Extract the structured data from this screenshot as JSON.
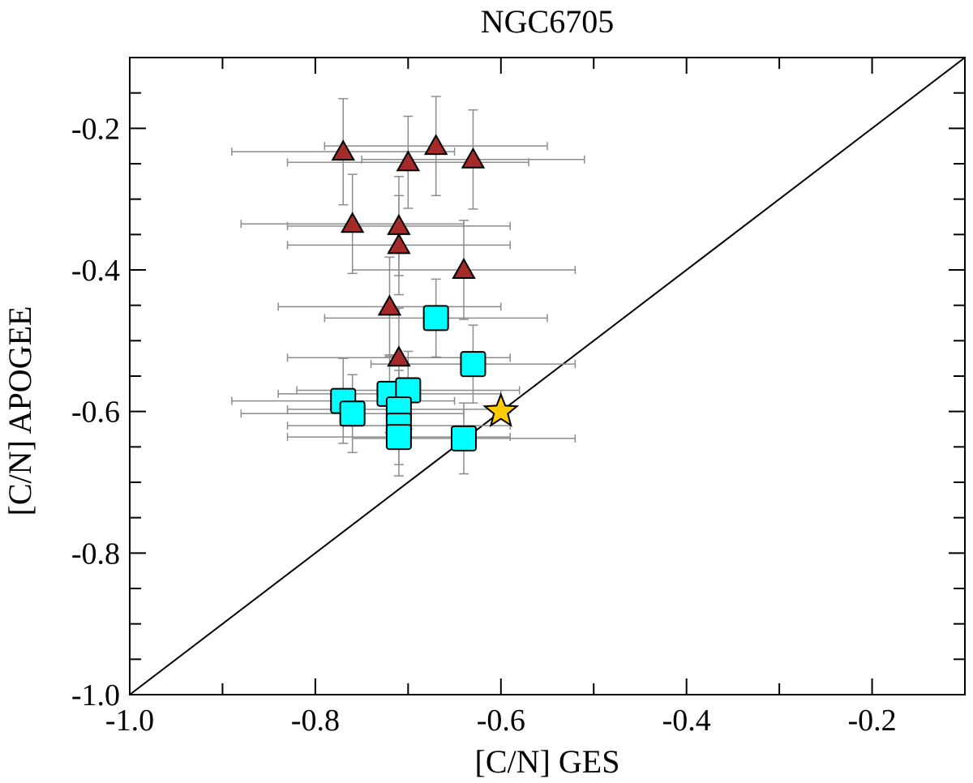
{
  "chart_data": {
    "type": "scatter",
    "title": "NGC6705",
    "xlabel": "[C/N] GES",
    "ylabel": "[C/N] APOGEE",
    "xlim": [
      -1.0,
      -0.1
    ],
    "ylim": [
      -1.0,
      -0.1
    ],
    "x_ticks": [
      -1.0,
      -0.8,
      -0.6,
      -0.4,
      -0.2
    ],
    "x_tick_labels": [
      "-1.0",
      "-0.8",
      "-0.6",
      "-0.4",
      "-0.2"
    ],
    "y_ticks": [
      -1.0,
      -0.8,
      -0.6,
      -0.4,
      -0.2
    ],
    "y_tick_labels": [
      "-1.0",
      "-0.8",
      "-0.6",
      "-0.4",
      "-0.2"
    ],
    "grid": false,
    "reference_line": {
      "name": "one-to-one",
      "from": [
        -1.0,
        -1.0
      ],
      "to": [
        -0.1,
        -0.1
      ]
    },
    "series": [
      {
        "name": "triangles",
        "marker": "triangle",
        "color": "#a52a2a",
        "points": [
          {
            "x": -0.77,
            "y": -0.233,
            "xerr": 0.12,
            "yerr": 0.075
          },
          {
            "x": -0.67,
            "y": -0.225,
            "xerr": 0.12,
            "yerr": 0.07
          },
          {
            "x": -0.7,
            "y": -0.248,
            "xerr": 0.13,
            "yerr": 0.065
          },
          {
            "x": -0.63,
            "y": -0.244,
            "xerr": 0.12,
            "yerr": 0.07
          },
          {
            "x": -0.76,
            "y": -0.335,
            "xerr": 0.12,
            "yerr": 0.07
          },
          {
            "x": -0.71,
            "y": -0.338,
            "xerr": 0.12,
            "yerr": 0.07
          },
          {
            "x": -0.71,
            "y": -0.365,
            "xerr": 0.12,
            "yerr": 0.07
          },
          {
            "x": -0.64,
            "y": -0.4,
            "xerr": 0.12,
            "yerr": 0.07
          },
          {
            "x": -0.72,
            "y": -0.452,
            "xerr": 0.12,
            "yerr": 0.07
          },
          {
            "x": -0.71,
            "y": -0.524,
            "xerr": 0.12,
            "yerr": 0.07
          }
        ]
      },
      {
        "name": "squares",
        "marker": "square",
        "color": "#00ffff",
        "points": [
          {
            "x": -0.67,
            "y": -0.468,
            "xerr": 0.12,
            "yerr": 0.055
          },
          {
            "x": -0.63,
            "y": -0.533,
            "xerr": 0.11,
            "yerr": 0.055
          },
          {
            "x": -0.77,
            "y": -0.585,
            "xerr": 0.12,
            "yerr": 0.06
          },
          {
            "x": -0.76,
            "y": -0.603,
            "xerr": 0.12,
            "yerr": 0.055
          },
          {
            "x": -0.72,
            "y": -0.575,
            "xerr": 0.12,
            "yerr": 0.055
          },
          {
            "x": -0.7,
            "y": -0.57,
            "xerr": 0.12,
            "yerr": 0.055
          },
          {
            "x": -0.71,
            "y": -0.597,
            "xerr": 0.12,
            "yerr": 0.055
          },
          {
            "x": -0.71,
            "y": -0.62,
            "xerr": 0.12,
            "yerr": 0.055
          },
          {
            "x": -0.71,
            "y": -0.636,
            "xerr": 0.12,
            "yerr": 0.055
          },
          {
            "x": -0.64,
            "y": -0.638,
            "xerr": 0.12,
            "yerr": 0.05
          }
        ]
      },
      {
        "name": "star",
        "marker": "star",
        "color": "#ffcc00",
        "points": [
          {
            "x": -0.6,
            "y": -0.6
          }
        ]
      }
    ]
  },
  "colors": {
    "errorbar": "#8c8c8c",
    "frame": "#000000",
    "marker_edge": "#000000"
  }
}
